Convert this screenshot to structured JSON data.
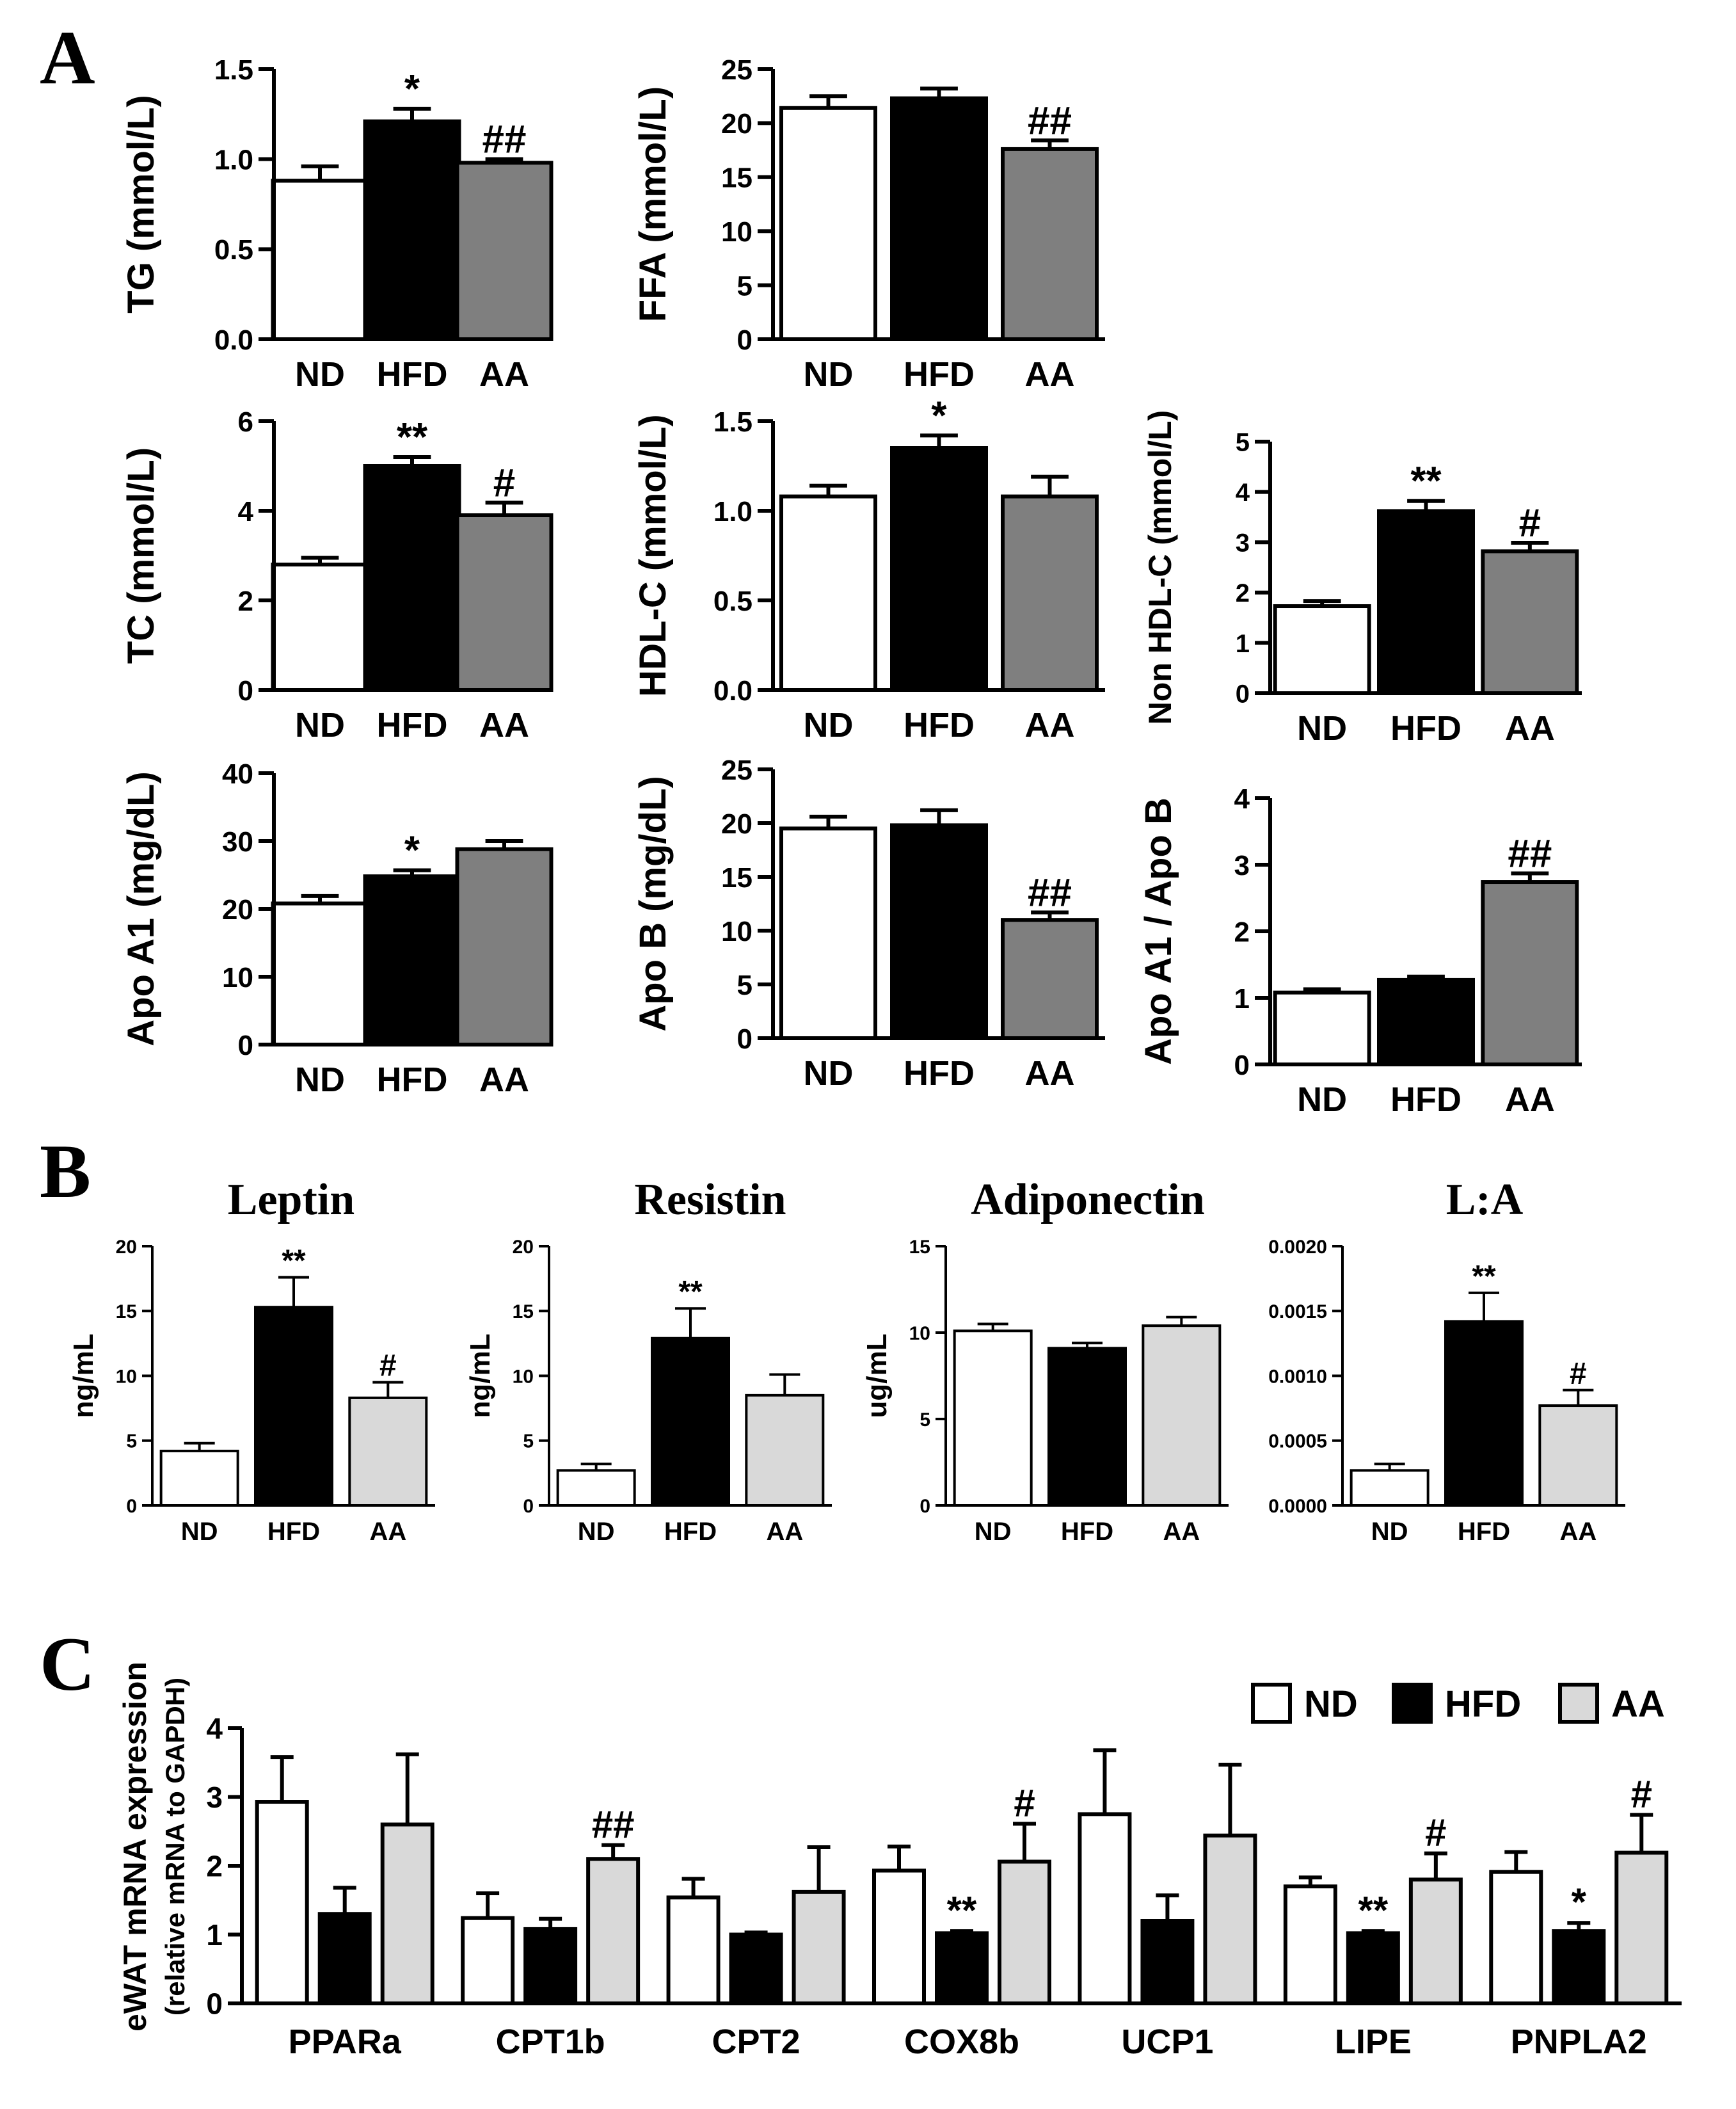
{
  "colors": {
    "ND": "#ffffff",
    "HFD": "#000000",
    "AA_A": "#7f7f7f",
    "AA_light": "#d9d9d9",
    "stroke": "#000000"
  },
  "panels": {
    "A": "A",
    "B": "B",
    "C": "C"
  },
  "legend": [
    "ND",
    "HFD",
    "AA"
  ],
  "chart_data": [
    {
      "id": "tg",
      "panel": "A",
      "type": "bar",
      "title": "",
      "ylabel": "TG (mmol/L)",
      "categories": [
        "ND",
        "HFD",
        "AA"
      ],
      "values": [
        0.88,
        1.21,
        0.98
      ],
      "errors": [
        0.08,
        0.07,
        0.02
      ],
      "sig": [
        "",
        "*",
        "##"
      ],
      "ylim": [
        0,
        1.5
      ],
      "yticks": [
        "0.0",
        "0.5",
        "1.0",
        "1.5"
      ],
      "fill": [
        "ND",
        "HFD",
        "AA_A"
      ]
    },
    {
      "id": "ffa",
      "panel": "A",
      "type": "bar",
      "title": "",
      "ylabel": "FFA (mmol/L)",
      "categories": [
        "ND",
        "HFD",
        "AA"
      ],
      "values": [
        21.4,
        22.3,
        17.6
      ],
      "errors": [
        1.1,
        0.9,
        0.8
      ],
      "sig": [
        "",
        "",
        "##"
      ],
      "ylim": [
        0,
        25
      ],
      "yticks": [
        "0",
        "5",
        "10",
        "15",
        "20",
        "25"
      ],
      "fill": [
        "ND",
        "HFD",
        "AA_A"
      ]
    },
    {
      "id": "tc",
      "panel": "A",
      "type": "bar",
      "title": "",
      "ylabel": "TC (mmol/L)",
      "categories": [
        "ND",
        "HFD",
        "AA"
      ],
      "values": [
        2.8,
        5.0,
        3.9
      ],
      "errors": [
        0.15,
        0.2,
        0.28
      ],
      "sig": [
        "",
        "**",
        "#"
      ],
      "ylim": [
        0,
        6
      ],
      "yticks": [
        "0",
        "2",
        "4",
        "6"
      ],
      "fill": [
        "ND",
        "HFD",
        "AA_A"
      ]
    },
    {
      "id": "hdl",
      "panel": "A",
      "type": "bar",
      "title": "",
      "ylabel": "HDL-C (mmol/L)",
      "categories": [
        "ND",
        "HFD",
        "AA"
      ],
      "values": [
        1.08,
        1.35,
        1.08
      ],
      "errors": [
        0.06,
        0.07,
        0.11
      ],
      "sig": [
        "",
        "*",
        ""
      ],
      "ylim": [
        0,
        1.5
      ],
      "yticks": [
        "0.0",
        "0.5",
        "1.0",
        "1.5"
      ],
      "fill": [
        "ND",
        "HFD",
        "AA_A"
      ]
    },
    {
      "id": "nonhdl",
      "panel": "A",
      "type": "bar",
      "title": "",
      "ylabel": "Non HDL-C (mmol/L)",
      "categories": [
        "ND",
        "HFD",
        "AA"
      ],
      "values": [
        1.73,
        3.62,
        2.82
      ],
      "errors": [
        0.1,
        0.2,
        0.17
      ],
      "sig": [
        "",
        "**",
        "#"
      ],
      "ylim": [
        0,
        5
      ],
      "yticks": [
        "0",
        "1",
        "2",
        "3",
        "4",
        "5"
      ],
      "fill": [
        "ND",
        "HFD",
        "AA_A"
      ]
    },
    {
      "id": "apoa1",
      "panel": "A",
      "type": "bar",
      "title": "",
      "ylabel": "Apo A1 (mg/dL)",
      "categories": [
        "ND",
        "HFD",
        "AA"
      ],
      "values": [
        20.8,
        24.8,
        28.8
      ],
      "errors": [
        1.1,
        0.9,
        1.2
      ],
      "sig": [
        "",
        "*",
        ""
      ],
      "ylim": [
        0,
        40
      ],
      "yticks": [
        "0",
        "10",
        "20",
        "30",
        "40"
      ],
      "fill": [
        "ND",
        "HFD",
        "AA_A"
      ]
    },
    {
      "id": "apob",
      "panel": "A",
      "type": "bar",
      "title": "",
      "ylabel": "Apo B (mg/dL)",
      "categories": [
        "ND",
        "HFD",
        "AA"
      ],
      "values": [
        19.5,
        19.8,
        11.0
      ],
      "errors": [
        1.1,
        1.4,
        0.7
      ],
      "sig": [
        "",
        "",
        "##"
      ],
      "ylim": [
        0,
        25
      ],
      "yticks": [
        "0",
        "5",
        "10",
        "15",
        "20",
        "25"
      ],
      "fill": [
        "ND",
        "HFD",
        "AA_A"
      ]
    },
    {
      "id": "ratio",
      "panel": "A",
      "type": "bar",
      "title": "",
      "ylabel": "Apo A1 / Apo B",
      "categories": [
        "ND",
        "HFD",
        "AA"
      ],
      "values": [
        1.08,
        1.27,
        2.74
      ],
      "errors": [
        0.05,
        0.05,
        0.13
      ],
      "sig": [
        "",
        "",
        "##"
      ],
      "ylim": [
        0,
        4
      ],
      "yticks": [
        "0",
        "1",
        "2",
        "3",
        "4"
      ],
      "fill": [
        "ND",
        "HFD",
        "AA_A"
      ]
    },
    {
      "id": "leptin",
      "panel": "B",
      "type": "bar",
      "title": "Leptin",
      "ylabel": "ng/mL",
      "categories": [
        "ND",
        "HFD",
        "AA"
      ],
      "values": [
        4.2,
        15.3,
        8.3
      ],
      "errors": [
        0.6,
        2.3,
        1.2
      ],
      "sig": [
        "",
        "**",
        "#"
      ],
      "ylim": [
        0,
        20
      ],
      "yticks": [
        "0",
        "5",
        "10",
        "15",
        "20"
      ],
      "fill": [
        "ND",
        "HFD",
        "AA_light"
      ]
    },
    {
      "id": "resistin",
      "panel": "B",
      "type": "bar",
      "title": "Resistin",
      "ylabel": "ng/mL",
      "categories": [
        "ND",
        "HFD",
        "AA"
      ],
      "values": [
        2.7,
        12.9,
        8.5
      ],
      "errors": [
        0.5,
        2.3,
        1.6
      ],
      "sig": [
        "",
        "**",
        ""
      ],
      "ylim": [
        0,
        20
      ],
      "yticks": [
        "0",
        "5",
        "10",
        "15",
        "20"
      ],
      "fill": [
        "ND",
        "HFD",
        "AA_light"
      ]
    },
    {
      "id": "adiponectin",
      "panel": "B",
      "type": "bar",
      "title": "Adiponectin",
      "ylabel": "ug/mL",
      "categories": [
        "ND",
        "HFD",
        "AA"
      ],
      "values": [
        10.1,
        9.1,
        10.4
      ],
      "errors": [
        0.4,
        0.3,
        0.5
      ],
      "sig": [
        "",
        "",
        ""
      ],
      "ylim": [
        0,
        15
      ],
      "yticks": [
        "0",
        "5",
        "10",
        "15"
      ],
      "fill": [
        "ND",
        "HFD",
        "AA_light"
      ]
    },
    {
      "id": "la",
      "panel": "B",
      "type": "bar",
      "title": "L:A",
      "ylabel": "",
      "categories": [
        "ND",
        "HFD",
        "AA"
      ],
      "values": [
        0.00027,
        0.00142,
        0.00077
      ],
      "errors": [
        5e-05,
        0.00022,
        0.00012
      ],
      "sig": [
        "",
        "**",
        "#"
      ],
      "ylim": [
        0,
        0.002
      ],
      "yticks": [
        "0.0000",
        "0.0005",
        "0.0010",
        "0.0015",
        "0.0020"
      ],
      "fill": [
        "ND",
        "HFD",
        "AA_light"
      ]
    },
    {
      "id": "mrna",
      "panel": "C",
      "type": "bar",
      "title": "",
      "ylabel": "eWAT mRNA expression",
      "ylabel2": "(relative mRNA to GAPDH)",
      "categories": [
        "PPARa",
        "CPT1b",
        "CPT2",
        "COX8b",
        "UCP1",
        "LIPE",
        "PNPLA2"
      ],
      "ylim": [
        0,
        4
      ],
      "yticks": [
        "0",
        "1",
        "2",
        "3",
        "4"
      ],
      "series": [
        {
          "name": "ND",
          "fill": "ND",
          "values": [
            2.93,
            1.24,
            1.54,
            1.93,
            2.75,
            1.7,
            1.91
          ],
          "errors": [
            0.65,
            0.36,
            0.27,
            0.35,
            0.93,
            0.13,
            0.29
          ],
          "sig": [
            "",
            "",
            "",
            "",
            "",
            "",
            ""
          ]
        },
        {
          "name": "HFD",
          "fill": "HFD",
          "values": [
            1.3,
            1.08,
            1.0,
            1.02,
            1.2,
            1.02,
            1.05
          ],
          "errors": [
            0.38,
            0.15,
            0.03,
            0.03,
            0.37,
            0.03,
            0.12
          ],
          "sig": [
            "",
            "",
            "",
            "**",
            "",
            "**",
            "*"
          ]
        },
        {
          "name": "AA",
          "fill": "AA_light",
          "values": [
            2.6,
            2.1,
            1.62,
            2.06,
            2.44,
            1.8,
            2.19
          ],
          "errors": [
            1.02,
            0.2,
            0.65,
            0.55,
            1.03,
            0.38,
            0.55
          ],
          "sig": [
            "",
            "##",
            "",
            "#",
            "",
            "#",
            "#"
          ]
        }
      ]
    }
  ]
}
